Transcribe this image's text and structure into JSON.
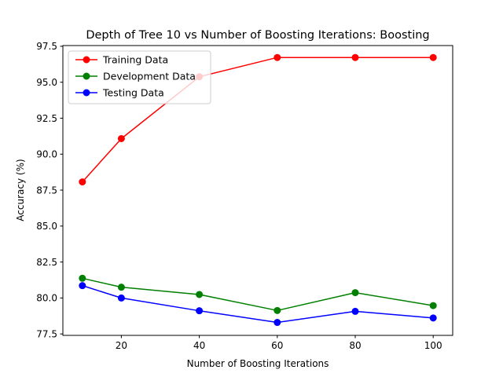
{
  "chart_data": {
    "type": "line",
    "title": "Depth of Tree 10 vs Number of Boosting Iterations: Boosting",
    "xlabel": "Number of Boosting Iterations",
    "ylabel": "Accuracy (%)",
    "x": [
      10,
      20,
      40,
      60,
      80,
      100
    ],
    "xlim": [
      5,
      105
    ],
    "ylim": [
      77.4,
      97.55
    ],
    "xticks": [
      20,
      40,
      60,
      80,
      100
    ],
    "yticks": [
      77.5,
      80.0,
      82.5,
      85.0,
      87.5,
      90.0,
      92.5,
      95.0,
      97.5
    ],
    "xtick_labels": [
      "20",
      "40",
      "60",
      "80",
      "100"
    ],
    "ytick_labels": [
      "77.5",
      "80.0",
      "82.5",
      "85.0",
      "87.5",
      "90.0",
      "92.5",
      "95.0",
      "97.5"
    ],
    "grid": false,
    "legend_position": "top-left",
    "series": [
      {
        "name": "Training Data",
        "color": "#ff0000",
        "marker": "circle",
        "values": [
          88.07,
          91.08,
          95.38,
          96.72,
          96.72,
          96.72
        ]
      },
      {
        "name": "Development Data",
        "color": "#008000",
        "marker": "circle",
        "values": [
          81.37,
          80.75,
          80.24,
          79.13,
          80.37,
          79.47
        ]
      },
      {
        "name": "Testing Data",
        "color": "#0000ff",
        "marker": "circle",
        "values": [
          80.86,
          80.0,
          79.11,
          78.3,
          79.07,
          78.61
        ]
      }
    ]
  }
}
